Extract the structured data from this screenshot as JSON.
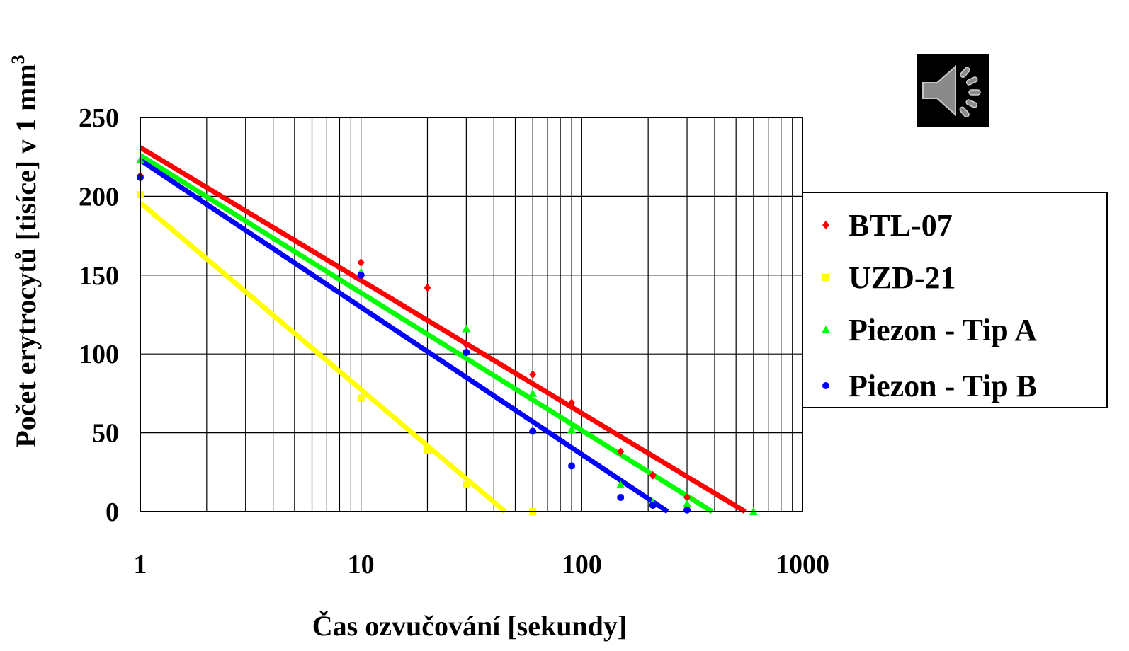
{
  "chart_data": {
    "type": "scatter",
    "title": "",
    "xlabel": "Čas ozvučování [sekundy]",
    "ylabel": "Počet erytrocytů [tisíce]  v 1 mm",
    "ylabel_superscript": "3",
    "xscale": "log",
    "xlim": [
      1,
      1000
    ],
    "ylim": [
      0,
      250
    ],
    "x_ticks": [
      "1",
      "10",
      "100",
      "1000"
    ],
    "y_ticks": [
      "0",
      "50",
      "100",
      "150",
      "200",
      "250"
    ],
    "grid": true,
    "legend_position": "right",
    "series": [
      {
        "name": "BTL-07",
        "color": "#ff0000",
        "marker": "diamond",
        "points": [
          [
            1,
            213
          ],
          [
            10,
            158
          ],
          [
            20,
            142
          ],
          [
            30,
            106
          ],
          [
            60,
            87
          ],
          [
            90,
            69
          ],
          [
            150,
            38
          ],
          [
            210,
            23
          ],
          [
            300,
            9
          ]
        ],
        "trend": [
          [
            1,
            231
          ],
          [
            550,
            0
          ]
        ]
      },
      {
        "name": "UZD-21",
        "color": "#ffff00",
        "marker": "square",
        "points": [
          [
            1,
            201
          ],
          [
            10,
            72
          ],
          [
            20,
            39
          ],
          [
            30,
            17
          ],
          [
            60,
            0
          ]
        ],
        "trend": [
          [
            1,
            196
          ],
          [
            45,
            0
          ]
        ]
      },
      {
        "name": "Piezon - Tip A",
        "color": "#00ff00",
        "marker": "triangle",
        "points": [
          [
            1,
            223
          ],
          [
            10,
            152
          ],
          [
            30,
            116
          ],
          [
            60,
            75
          ],
          [
            90,
            52
          ],
          [
            150,
            17
          ],
          [
            210,
            6
          ],
          [
            300,
            5
          ],
          [
            600,
            0
          ]
        ],
        "trend": [
          [
            1,
            226
          ],
          [
            390,
            0
          ]
        ]
      },
      {
        "name": "Piezon - Tip B",
        "color": "#0000ff",
        "marker": "circle",
        "points": [
          [
            1,
            212
          ],
          [
            10,
            150
          ],
          [
            30,
            101
          ],
          [
            60,
            51
          ],
          [
            90,
            29
          ],
          [
            150,
            9
          ],
          [
            210,
            4
          ],
          [
            300,
            1
          ]
        ],
        "trend": [
          [
            1,
            223
          ],
          [
            245,
            0
          ]
        ]
      }
    ]
  },
  "sound_icon": "speaker-icon",
  "colors": {
    "grid": "#000000",
    "background": "#ffffff"
  }
}
